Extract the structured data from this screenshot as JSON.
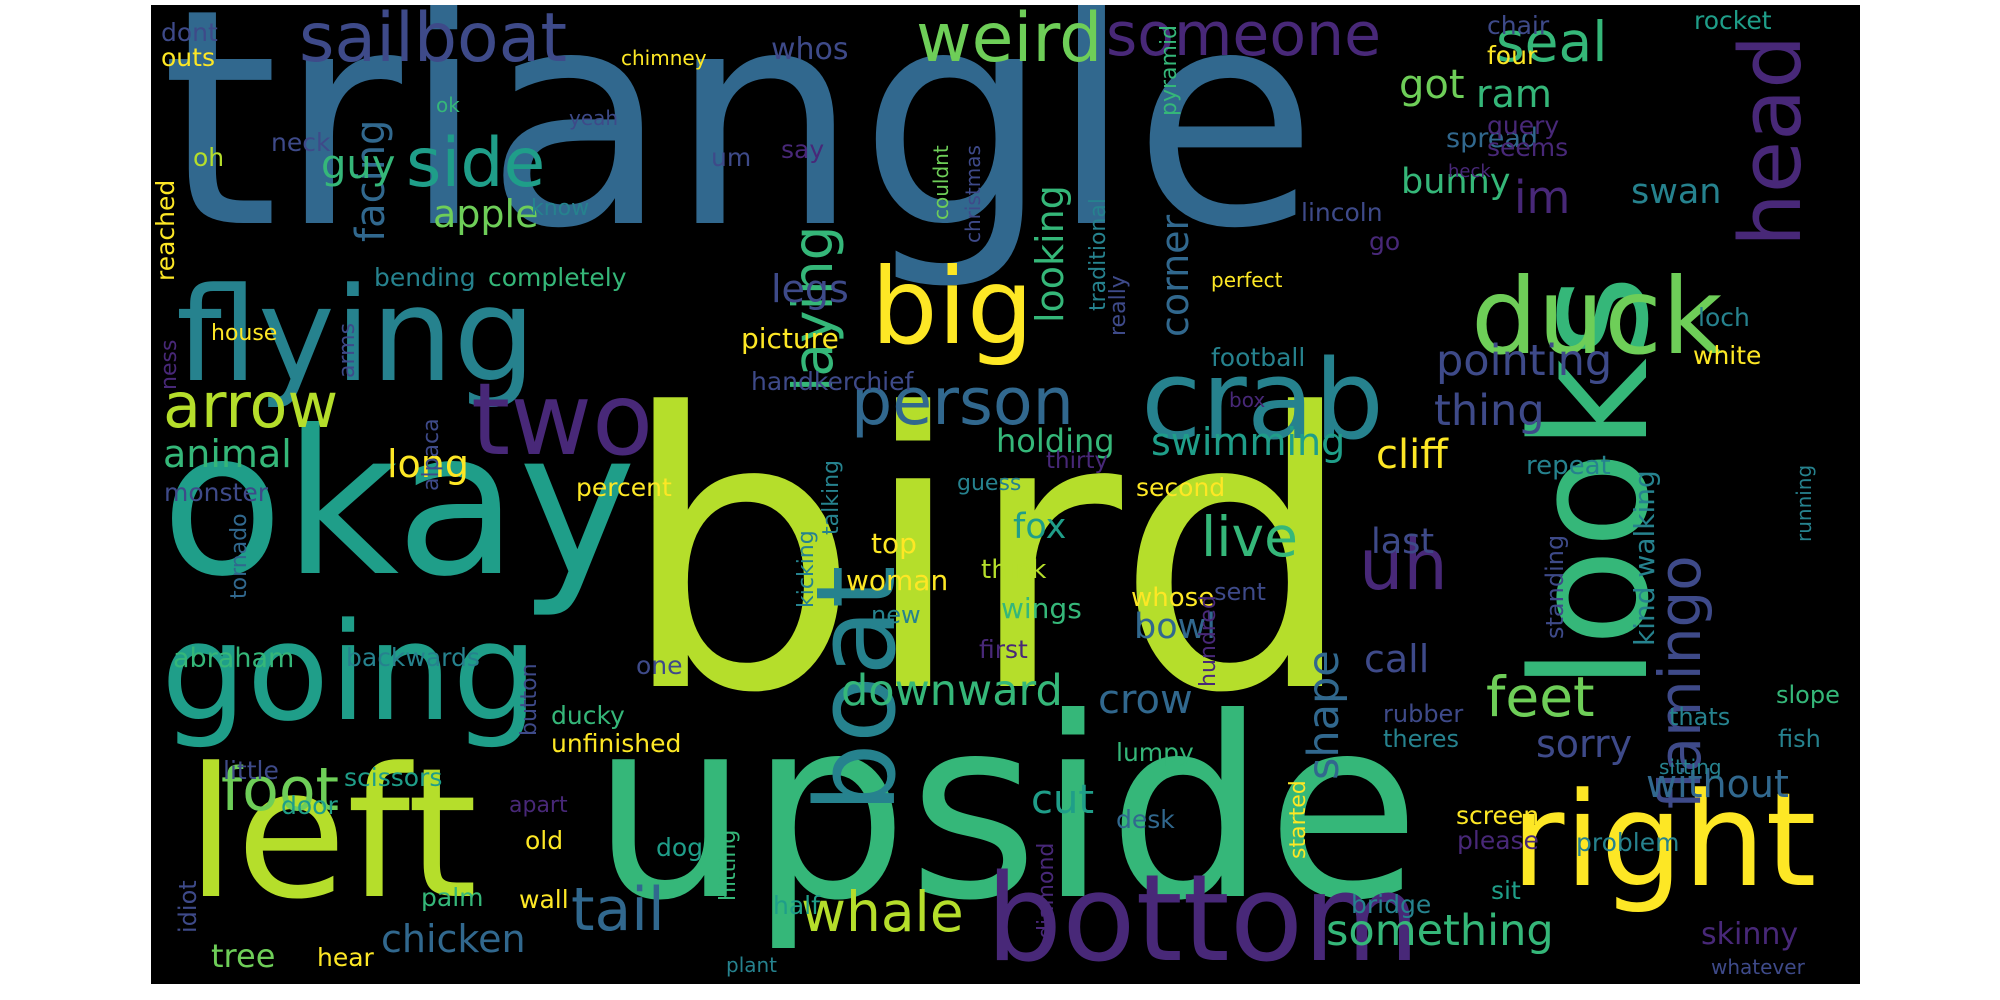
{
  "palette": {
    "dark_purple": "#482878",
    "indigo": "#3e4a89",
    "blue": "#31688e",
    "teal": "#26828e",
    "teal_green": "#1f9e89",
    "green": "#35b779",
    "light_green": "#6ece58",
    "yellow_green": "#b5de2b",
    "yellow": "#fde725"
  },
  "words": [
    {
      "text": "triangle"
    },
    {
      "text": "bird"
    },
    {
      "text": "upside"
    },
    {
      "text": "okay"
    },
    {
      "text": "looks"
    },
    {
      "text": "left"
    },
    {
      "text": "flying"
    },
    {
      "text": "going"
    },
    {
      "text": "bottom"
    },
    {
      "text": "right"
    },
    {
      "text": "boat"
    },
    {
      "text": "crab"
    },
    {
      "text": "duck"
    },
    {
      "text": "head"
    },
    {
      "text": "two"
    },
    {
      "text": "big"
    },
    {
      "text": "person"
    },
    {
      "text": "sailboat"
    },
    {
      "text": "weird"
    },
    {
      "text": "someone"
    },
    {
      "text": "side"
    },
    {
      "text": "flamingo"
    },
    {
      "text": "uh"
    },
    {
      "text": "arrow"
    },
    {
      "text": "foot"
    },
    {
      "text": "tail"
    },
    {
      "text": "whale"
    },
    {
      "text": "live"
    },
    {
      "text": "feet"
    },
    {
      "text": "laying"
    },
    {
      "text": "seal"
    },
    {
      "text": "downward"
    },
    {
      "text": "something"
    },
    {
      "text": "pointing"
    },
    {
      "text": "thing"
    },
    {
      "text": "im"
    },
    {
      "text": "swimming"
    },
    {
      "text": "without"
    },
    {
      "text": "chicken"
    },
    {
      "text": "cliff"
    },
    {
      "text": "cut"
    },
    {
      "text": "crow"
    },
    {
      "text": "sorry"
    },
    {
      "text": "call"
    },
    {
      "text": "shape"
    },
    {
      "text": "facing"
    },
    {
      "text": "guy"
    },
    {
      "text": "apple"
    },
    {
      "text": "animal"
    },
    {
      "text": "long"
    },
    {
      "text": "legs"
    },
    {
      "text": "corner"
    },
    {
      "text": "looking"
    },
    {
      "text": "holding"
    },
    {
      "text": "got"
    },
    {
      "text": "ram"
    },
    {
      "text": "bunny"
    },
    {
      "text": "swan"
    },
    {
      "text": "fox"
    },
    {
      "text": "bowl"
    },
    {
      "text": "last"
    },
    {
      "text": "kind walking"
    },
    {
      "text": "skinny"
    },
    {
      "text": "tree"
    },
    {
      "text": "whos"
    },
    {
      "text": "picture"
    },
    {
      "text": "handkerchief"
    },
    {
      "text": "spread"
    },
    {
      "text": "query"
    },
    {
      "text": "seems"
    },
    {
      "text": "lincoln"
    },
    {
      "text": "chair"
    },
    {
      "text": "four"
    },
    {
      "text": "rocket"
    },
    {
      "text": "dont"
    },
    {
      "text": "outs"
    },
    {
      "text": "chimney"
    },
    {
      "text": "ok"
    },
    {
      "text": "neck"
    },
    {
      "text": "oh"
    },
    {
      "text": "yeah"
    },
    {
      "text": "um"
    },
    {
      "text": "say"
    },
    {
      "text": "know"
    },
    {
      "text": "reached"
    },
    {
      "text": "couldnt"
    },
    {
      "text": "christmas"
    },
    {
      "text": "traditional"
    },
    {
      "text": "pyramid"
    },
    {
      "text": "heck"
    },
    {
      "text": "go"
    },
    {
      "text": "perfect"
    },
    {
      "text": "bending"
    },
    {
      "text": "completely"
    },
    {
      "text": "house"
    },
    {
      "text": "arms"
    },
    {
      "text": "ness"
    },
    {
      "text": "alpaca"
    },
    {
      "text": "really"
    },
    {
      "text": "box"
    },
    {
      "text": "football"
    },
    {
      "text": "loch"
    },
    {
      "text": "white"
    },
    {
      "text": "monster"
    },
    {
      "text": "percent"
    },
    {
      "text": "guess"
    },
    {
      "text": "thirty"
    },
    {
      "text": "second"
    },
    {
      "text": "repeat"
    },
    {
      "text": "running"
    },
    {
      "text": "tornado"
    },
    {
      "text": "talking"
    },
    {
      "text": "kicking"
    },
    {
      "text": "top"
    },
    {
      "text": "think"
    },
    {
      "text": "sent"
    },
    {
      "text": "woman"
    },
    {
      "text": "wings"
    },
    {
      "text": "whose"
    },
    {
      "text": "new"
    },
    {
      "text": "standing"
    },
    {
      "text": "hundred"
    },
    {
      "text": "abraham"
    },
    {
      "text": "backwards"
    },
    {
      "text": "button"
    },
    {
      "text": "one"
    },
    {
      "text": "first"
    },
    {
      "text": "ducky"
    },
    {
      "text": "unfinished"
    },
    {
      "text": "rubber"
    },
    {
      "text": "theres"
    },
    {
      "text": "thats"
    },
    {
      "text": "slope"
    },
    {
      "text": "fish"
    },
    {
      "text": "little"
    },
    {
      "text": "scissors"
    },
    {
      "text": "lumpy"
    },
    {
      "text": "sitting"
    },
    {
      "text": "door"
    },
    {
      "text": "apart"
    },
    {
      "text": "diamond"
    },
    {
      "text": "desk"
    },
    {
      "text": "screen"
    },
    {
      "text": "please"
    },
    {
      "text": "problem"
    },
    {
      "text": "idiot"
    },
    {
      "text": "old"
    },
    {
      "text": "dog"
    },
    {
      "text": "hitting"
    },
    {
      "text": "started"
    },
    {
      "text": "palm"
    },
    {
      "text": "wall"
    },
    {
      "text": "half"
    },
    {
      "text": "sit"
    },
    {
      "text": "bridge"
    },
    {
      "text": "hear"
    },
    {
      "text": "plant"
    },
    {
      "text": "whatever"
    }
  ]
}
